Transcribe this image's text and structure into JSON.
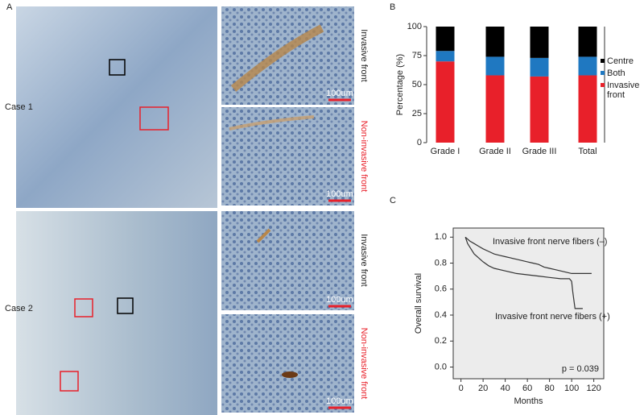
{
  "figure": {
    "panels": [
      "A",
      "B",
      "C"
    ],
    "cases": [
      "Case 1",
      "Case 2"
    ],
    "image_labels": [
      "Invasive front",
      "Non-invasive front",
      "Invasive front",
      "Non-invasive front"
    ],
    "scale_bar": "100um"
  },
  "chart_data": [
    {
      "type": "bar",
      "stacked": true,
      "ylabel": "Percentage (%)",
      "categories": [
        "Grade I",
        "Grade II",
        "Grade III",
        "Total"
      ],
      "series": [
        {
          "name": "Invasive front",
          "color": "#e8202a",
          "values": [
            70,
            58,
            57,
            58
          ]
        },
        {
          "name": "Both",
          "color": "#1f78c1",
          "values": [
            9,
            16,
            16,
            16
          ]
        },
        {
          "name": "Centre",
          "color": "#000000",
          "values": [
            21,
            26,
            27,
            26
          ]
        }
      ],
      "ylim": [
        0,
        100
      ],
      "yticks": [
        0,
        25,
        50,
        75,
        100
      ],
      "legend": "right"
    },
    {
      "type": "line",
      "xlabel": "Months",
      "ylabel": "Overall survival",
      "xlim": [
        -7,
        129
      ],
      "xticks": [
        0,
        20,
        40,
        60,
        80,
        100,
        120
      ],
      "ylim": [
        -0.09,
        1.07
      ],
      "yticks": [
        {
          "value": 0,
          "label": "0.0"
        },
        0.2,
        0.4,
        0.6,
        0.8,
        {
          "value": 1,
          "label": "1.0"
        }
      ],
      "series": [
        {
          "name": "Invasive front nerve fibers (–)",
          "color": "#333333",
          "x": [
            4,
            8,
            12,
            16,
            20,
            25,
            30,
            35,
            40,
            45,
            50,
            55,
            60,
            65,
            70,
            75,
            80,
            85,
            90,
            95,
            100,
            105,
            110,
            118
          ],
          "values": [
            1.0,
            0.97,
            0.95,
            0.93,
            0.91,
            0.89,
            0.87,
            0.86,
            0.85,
            0.84,
            0.83,
            0.82,
            0.81,
            0.8,
            0.79,
            0.77,
            0.76,
            0.75,
            0.74,
            0.73,
            0.72,
            0.72,
            0.72,
            0.72
          ]
        },
        {
          "name": "Invasive front nerve fibers (+)",
          "color": "#333333",
          "x": [
            4,
            6,
            9,
            12,
            16,
            20,
            25,
            30,
            40,
            50,
            60,
            70,
            80,
            90,
            98,
            100,
            101,
            103,
            110
          ],
          "values": [
            1.0,
            0.95,
            0.91,
            0.87,
            0.84,
            0.81,
            0.78,
            0.76,
            0.74,
            0.72,
            0.71,
            0.7,
            0.69,
            0.68,
            0.68,
            0.66,
            0.58,
            0.45,
            0.45
          ]
        }
      ],
      "annotation": "p = 0.039",
      "background": "#ececec"
    }
  ]
}
